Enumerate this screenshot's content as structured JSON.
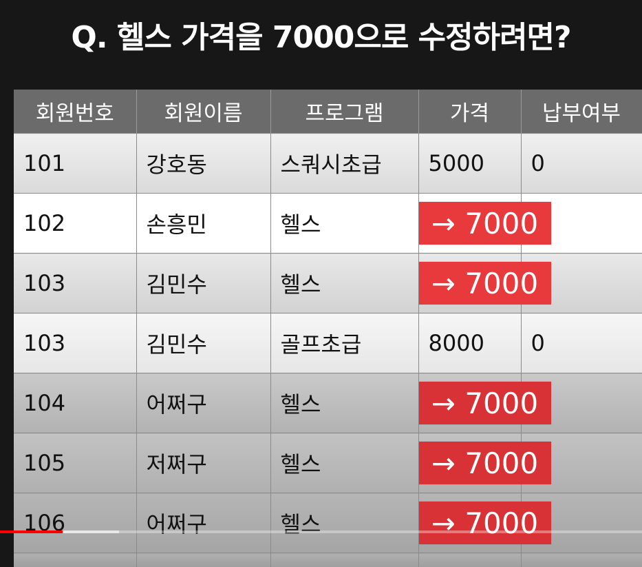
{
  "title": "Q. 헬스 가격을 7000으로 수정하려면?",
  "table": {
    "headers": [
      "회원번호",
      "회원이름",
      "프로그램",
      "가격",
      "납부여부"
    ],
    "rows": [
      {
        "id": "101",
        "name": "강호동",
        "program": "스쿼시초급",
        "price": "5000",
        "paid": "0",
        "updated": false
      },
      {
        "id": "102",
        "name": "손흥민",
        "program": "헬스",
        "price": "→ 7000",
        "paid": "",
        "updated": true
      },
      {
        "id": "103",
        "name": "김민수",
        "program": "헬스",
        "price": "→ 7000",
        "paid": "",
        "updated": true
      },
      {
        "id": "103",
        "name": "김민수",
        "program": "골프초급",
        "price": "8000",
        "paid": "0",
        "updated": false
      },
      {
        "id": "104",
        "name": "어쩌구",
        "program": "헬스",
        "price": "→ 7000",
        "paid": "",
        "updated": true
      },
      {
        "id": "105",
        "name": "저쩌구",
        "program": "헬스",
        "price": "→ 7000",
        "paid": "",
        "updated": true
      },
      {
        "id": "106",
        "name": "어쩌구",
        "program": "헬스",
        "price": "→ 7000",
        "paid": "",
        "updated": true
      }
    ]
  },
  "colors": {
    "badge": "#e8393c",
    "progress": "#ff0000"
  },
  "video_progress": {
    "played_fraction": 0.097,
    "buffered_fraction": 0.185
  }
}
